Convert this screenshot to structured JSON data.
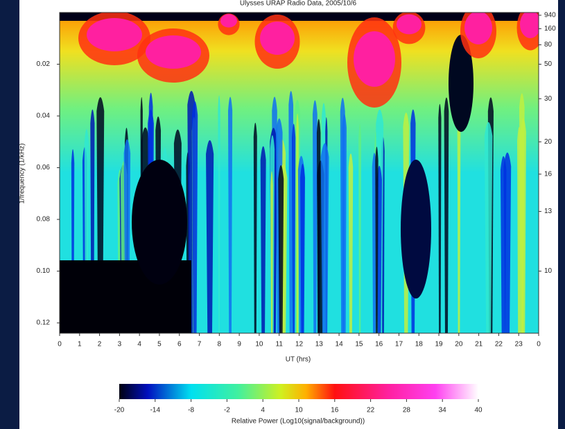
{
  "chart_data": {
    "type": "spectrogram",
    "title": "Ulysses URAP Radio Data, 2005/10/6",
    "x_label": "UT (hrs)",
    "y_label": "1/frequency (1/kHz)",
    "xlim": [
      0,
      24
    ],
    "xticks": [
      0,
      1,
      2,
      3,
      4,
      5,
      6,
      7,
      8,
      9,
      10,
      11,
      12,
      13,
      14,
      15,
      16,
      17,
      18,
      19,
      20,
      21,
      22,
      23,
      {
        "value": 24,
        "label": "0"
      }
    ],
    "ylim": [
      0,
      0.124
    ],
    "y_inverted": true,
    "yticks": [
      0.02,
      0.04,
      0.06,
      0.08,
      {
        "value": 0.1,
        "label": "0.10"
      },
      0.12
    ],
    "y2_scale": "reciprocal",
    "y2ticks": [
      940,
      160,
      80,
      50,
      30,
      20,
      16,
      13,
      10
    ],
    "colorbar": {
      "label": "Relative Power (Log10(signal/background))",
      "lim": [
        -20,
        40
      ],
      "ticks": [
        -20,
        -14,
        -8,
        -2,
        4,
        10,
        16,
        22,
        28,
        34,
        40
      ]
    }
  }
}
